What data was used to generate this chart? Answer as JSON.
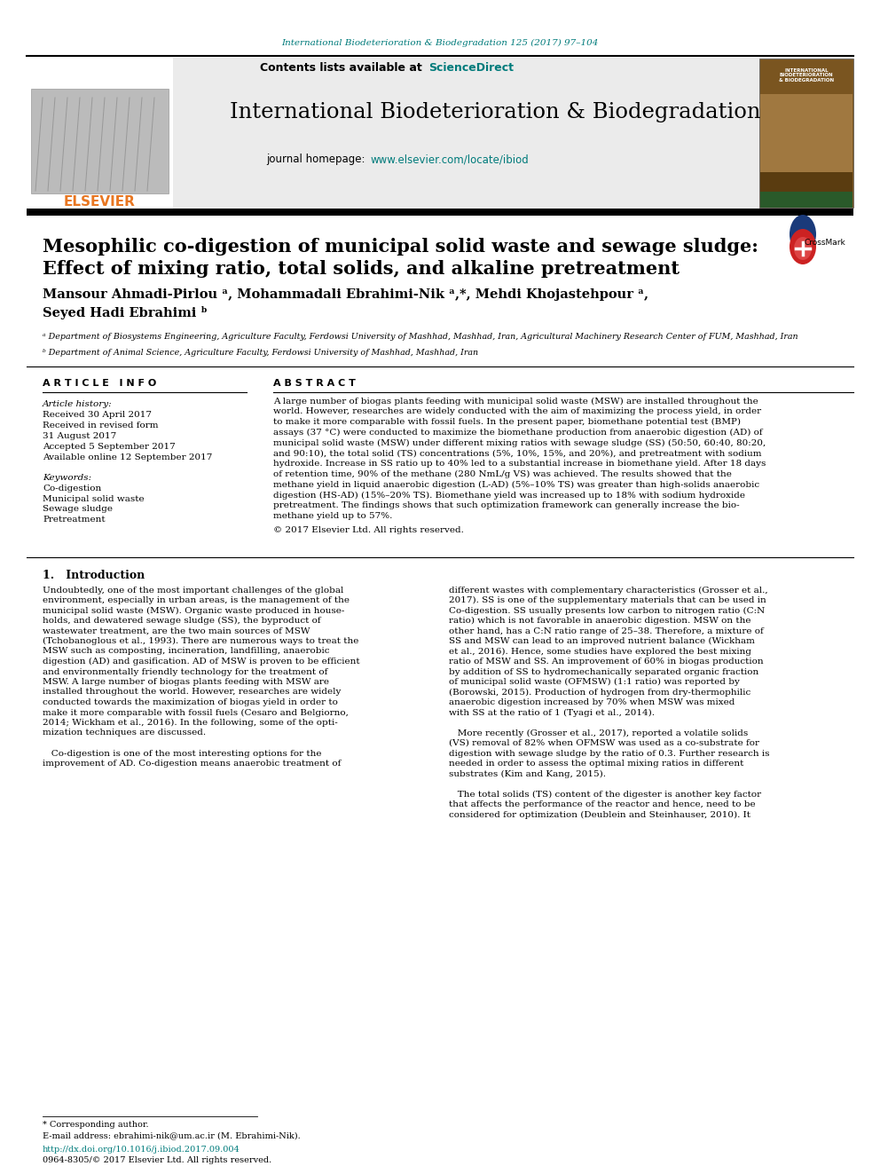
{
  "page_title_journal": "International Biodeterioration & Biodegradation 125 (2017) 97–104",
  "journal_name": "International Biodeterioration & Biodegradation",
  "journal_homepage_label": "journal homepage: ",
  "journal_homepage_url": "www.elsevier.com/locate/ibiod",
  "contents_label": "Contents lists available at ",
  "sciencedirect": "ScienceDirect",
  "elsevier_text": "ELSEVIER",
  "article_title_line1": "Mesophilic co-digestion of municipal solid waste and sewage sludge:",
  "article_title_line2": "Effect of mixing ratio, total solids, and alkaline pretreatment",
  "authors": "Mansour Ahmadi-Pirlou ᵃ, Mohammadali Ebrahimi-Nik ᵃ,*, Mehdi Khojastehpour ᵃ,",
  "authors2": "Seyed Hadi Ebrahimi ᵇ",
  "affil_a": "ᵃ Department of Biosystems Engineering, Agriculture Faculty, Ferdowsi University of Mashhad, Mashhad, Iran, Agricultural Machinery Research Center of FUM, Mashhad, Iran",
  "affil_b": "ᵇ Department of Animal Science, Agriculture Faculty, Ferdowsi University of Mashhad, Mashhad, Iran",
  "article_info_title": "A R T I C L E   I N F O",
  "abstract_title": "A B S T R A C T",
  "article_history_title": "Article history:",
  "received": "Received 30 April 2017",
  "revised": "Received in revised form",
  "revised2": "31 August 2017",
  "accepted": "Accepted 5 September 2017",
  "available": "Available online 12 September 2017",
  "keywords_title": "Keywords:",
  "keyword1": "Co-digestion",
  "keyword2": "Municipal solid waste",
  "keyword3": "Sewage sludge",
  "keyword4": "Pretreatment",
  "copyright": "© 2017 Elsevier Ltd. All rights reserved.",
  "intro_title": "1.   Introduction",
  "footnote_star": "* Corresponding author.",
  "footnote_email": "E-mail address: ebrahimi-nik@um.ac.ir (M. Ebrahimi-Nik).",
  "doi_text": "http://dx.doi.org/10.1016/j.ibiod.2017.09.004",
  "issn_text": "0964-8305/© 2017 Elsevier Ltd. All rights reserved.",
  "background_color": "#ffffff",
  "header_bg": "#ebebeb",
  "teal_color": "#007b7b",
  "orange_color": "#e87722",
  "abs_lines": [
    "A large number of biogas plants feeding with municipal solid waste (MSW) are installed throughout the",
    "world. However, researches are widely conducted with the aim of maximizing the process yield, in order",
    "to make it more comparable with fossil fuels. In the present paper, biomethane potential test (BMP)",
    "assays (37 °C) were conducted to maximize the biomethane production from anaerobic digestion (AD) of",
    "municipal solid waste (MSW) under different mixing ratios with sewage sludge (SS) (50:50, 60:40, 80:20,",
    "and 90:10), the total solid (TS) concentrations (5%, 10%, 15%, and 20%), and pretreatment with sodium",
    "hydroxide. Increase in SS ratio up to 40% led to a substantial increase in biomethane yield. After 18 days",
    "of retention time, 90% of the methane (280 NmL/g VS) was achieved. The results showed that the",
    "methane yield in liquid anaerobic digestion (L-AD) (5%–10% TS) was greater than high-solids anaerobic",
    "digestion (HS-AD) (15%–20% TS). Biomethane yield was increased up to 18% with sodium hydroxide",
    "pretreatment. The findings shows that such optimization framework can generally increase the bio-",
    "methane yield up to 57%."
  ],
  "intro1_lines": [
    "Undoubtedly, one of the most important challenges of the global",
    "environment, especially in urban areas, is the management of the",
    "municipal solid waste (MSW). Organic waste produced in house-",
    "holds, and dewatered sewage sludge (SS), the byproduct of",
    "wastewater treatment, are the two main sources of MSW",
    "(Tchobanoglous et al., 1993). There are numerous ways to treat the",
    "MSW such as composting, incineration, landfilling, anaerobic",
    "digestion (AD) and gasification. AD of MSW is proven to be efficient",
    "and environmentally friendly technology for the treatment of",
    "MSW. A large number of biogas plants feeding with MSW are",
    "installed throughout the world. However, researches are widely",
    "conducted towards the maximization of biogas yield in order to",
    "make it more comparable with fossil fuels (Cesaro and Belgiorno,",
    "2014; Wickham et al., 2016). In the following, some of the opti-",
    "mization techniques are discussed.",
    "",
    "   Co-digestion is one of the most interesting options for the",
    "improvement of AD. Co-digestion means anaerobic treatment of"
  ],
  "intro2_lines": [
    "different wastes with complementary characteristics (Grosser et al.,",
    "2017). SS is one of the supplementary materials that can be used in",
    "Co-digestion. SS usually presents low carbon to nitrogen ratio (C:N",
    "ratio) which is not favorable in anaerobic digestion. MSW on the",
    "other hand, has a C:N ratio range of 25–38. Therefore, a mixture of",
    "SS and MSW can lead to an improved nutrient balance (Wickham",
    "et al., 2016). Hence, some studies have explored the best mixing",
    "ratio of MSW and SS. An improvement of 60% in biogas production",
    "by addition of SS to hydromechanically separated organic fraction",
    "of municipal solid waste (OFMSW) (1:1 ratio) was reported by",
    "(Borowski, 2015). Production of hydrogen from dry-thermophilic",
    "anaerobic digestion increased by 70% when MSW was mixed",
    "with SS at the ratio of 1 (Tyagi et al., 2014).",
    "",
    "   More recently (Grosser et al., 2017), reported a volatile solids",
    "(VS) removal of 82% when OFMSW was used as a co-substrate for",
    "digestion with sewage sludge by the ratio of 0.3. Further research is",
    "needed in order to assess the optimal mixing ratios in different",
    "substrates (Kim and Kang, 2015).",
    "",
    "   The total solids (TS) content of the digester is another key factor",
    "that affects the performance of the reactor and hence, need to be",
    "considered for optimization (Deublein and Steinhauser, 2010). It"
  ]
}
